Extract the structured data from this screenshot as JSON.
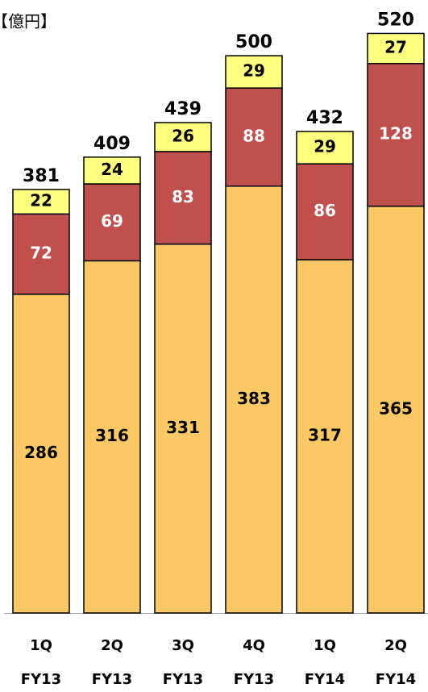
{
  "chart_data": {
    "type": "bar",
    "stacked": true,
    "unit_label": "【億円】",
    "categories": [
      [
        "1Q",
        "FY13"
      ],
      [
        "2Q",
        "FY13"
      ],
      [
        "3Q",
        "FY13"
      ],
      [
        "4Q",
        "FY13"
      ],
      [
        "1Q",
        "FY14"
      ],
      [
        "2Q",
        "FY14"
      ]
    ],
    "series": [
      {
        "color": "#fcc866",
        "values": [
          286,
          316,
          331,
          383,
          317,
          365
        ]
      },
      {
        "color": "#c0504d",
        "values": [
          72,
          69,
          83,
          88,
          86,
          128
        ]
      },
      {
        "color": "#ffff80",
        "values": [
          22,
          24,
          26,
          29,
          29,
          27
        ]
      }
    ],
    "totals": [
      381,
      409,
      439,
      500,
      432,
      520
    ],
    "ylim": [
      0,
      550
    ]
  }
}
